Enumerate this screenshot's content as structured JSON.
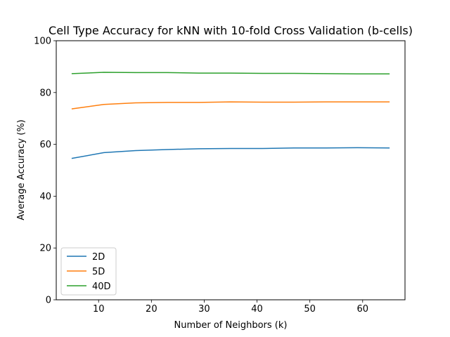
{
  "chart_data": {
    "type": "line",
    "title": "Cell Type Accuracy for kNN with 10-fold Cross Validation (b-cells)",
    "xlabel": "Number of Neighbors (k)",
    "ylabel": "Average Accuracy (%)",
    "xlim": [
      1.984,
      68.016
    ],
    "ylim": [
      0,
      100
    ],
    "xticks": [
      10,
      20,
      30,
      40,
      50,
      60
    ],
    "yticks": [
      0,
      20,
      40,
      60,
      80,
      100
    ],
    "x": [
      5,
      11,
      17,
      23,
      29,
      35,
      41,
      47,
      53,
      59,
      65
    ],
    "series": [
      {
        "name": "2D",
        "color": "#1f77b4",
        "values": [
          54.6,
          56.8,
          57.6,
          58.0,
          58.3,
          58.4,
          58.4,
          58.6,
          58.6,
          58.7,
          58.6
        ]
      },
      {
        "name": "5D",
        "color": "#ff7f0e",
        "values": [
          73.7,
          75.4,
          76.0,
          76.2,
          76.2,
          76.4,
          76.3,
          76.3,
          76.4,
          76.4,
          76.4
        ]
      },
      {
        "name": "40D",
        "color": "#2ca02c",
        "values": [
          87.3,
          87.8,
          87.7,
          87.7,
          87.5,
          87.5,
          87.4,
          87.4,
          87.3,
          87.2,
          87.2
        ]
      }
    ],
    "legend": {
      "position": "lower-left"
    },
    "grid": false
  }
}
